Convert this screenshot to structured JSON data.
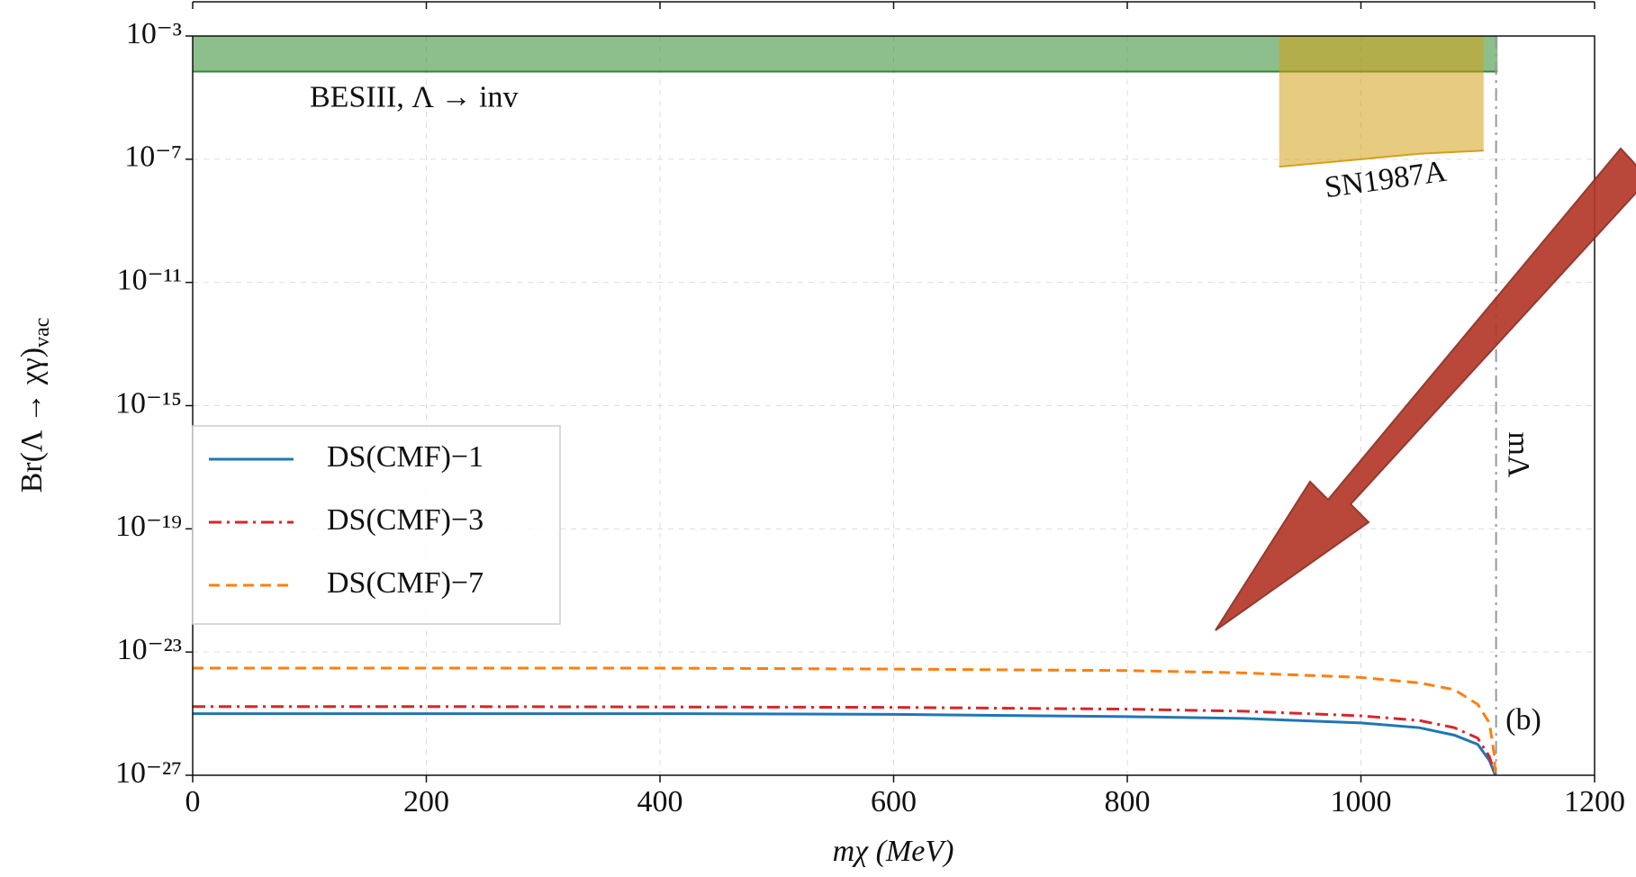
{
  "chart_data": {
    "type": "line",
    "xlabel": "mχ (MeV)",
    "ylabel": "Br(Λ → χγ)",
    "ylabel_subscript": "vac",
    "panel_label": "(b)",
    "xlim": [
      0,
      1200
    ],
    "xticks": [
      0,
      200,
      400,
      600,
      800,
      1000,
      1200
    ],
    "ylim": [
      1e-27,
      0.001
    ],
    "yscale": "log",
    "grid": true,
    "legend": "lower left",
    "yticks": [
      {
        "value": 0.001,
        "label": "10⁻³"
      },
      {
        "value": 1e-07,
        "label": "10⁻⁷"
      },
      {
        "value": 1e-11,
        "label": "10⁻¹¹"
      },
      {
        "value": 1e-15,
        "label": "10⁻¹⁵"
      },
      {
        "value": 1e-19,
        "label": "10⁻¹⁹"
      },
      {
        "value": 1e-23,
        "label": "10⁻²³"
      },
      {
        "value": 1e-27,
        "label": "10⁻²⁷"
      }
    ],
    "series": [
      {
        "name": "DS(CMF)−1",
        "color": "#1f77b4",
        "dash": "none",
        "x": [
          0,
          200,
          400,
          600,
          800,
          900,
          1000,
          1050,
          1080,
          1100,
          1110,
          1115
        ],
        "values": [
          1e-25,
          1e-25,
          1e-25,
          9.5e-26,
          8e-26,
          7e-26,
          5e-26,
          3.5e-26,
          2e-26,
          1e-26,
          3e-27,
          1e-27
        ]
      },
      {
        "name": "DS(CMF)−3",
        "color": "#d62728",
        "dash": "14,6,3,6",
        "x": [
          0,
          200,
          400,
          600,
          800,
          900,
          1000,
          1050,
          1080,
          1100,
          1110,
          1115
        ],
        "values": [
          1.7e-25,
          1.7e-25,
          1.65e-25,
          1.6e-25,
          1.4e-25,
          1.2e-25,
          8.5e-26,
          6e-26,
          3.5e-26,
          1.6e-26,
          4e-27,
          1e-27
        ]
      },
      {
        "name": "DS(CMF)−7",
        "color": "#ff7f0e",
        "dash": "12,7",
        "x": [
          0,
          200,
          400,
          600,
          800,
          900,
          1000,
          1050,
          1080,
          1100,
          1110,
          1114,
          1115
        ],
        "values": [
          3e-24,
          3e-24,
          3e-24,
          2.8e-24,
          2.5e-24,
          2.1e-24,
          1.5e-24,
          1e-24,
          6e-25,
          2e-25,
          5e-26,
          5e-27,
          1e-27
        ]
      }
    ],
    "bands": [
      {
        "name": "BESIII, Λ → inv",
        "color": "#2e8b2e",
        "x": [
          0,
          1117
        ],
        "lower": [
          7e-05,
          7e-05
        ],
        "upper": [
          0.001,
          0.001
        ]
      },
      {
        "name": "SN1987A",
        "color": "#d4a017",
        "x": [
          930,
          1000,
          1050,
          1105
        ],
        "lower": [
          5.7e-08,
          1e-07,
          1.5e-07,
          1.9e-07
        ],
        "upper": [
          0.001,
          0.001,
          0.001,
          0.001
        ]
      }
    ],
    "vline": {
      "value": 1115.7,
      "label": "mΛ",
      "color": "#999999"
    }
  }
}
